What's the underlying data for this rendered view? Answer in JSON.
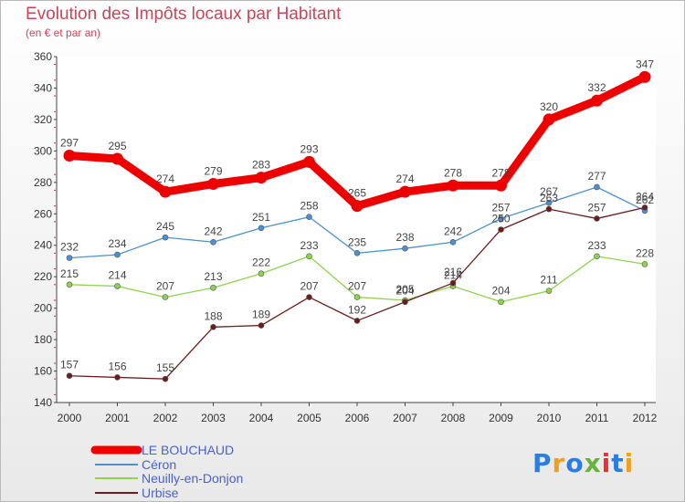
{
  "chart_data": {
    "type": "line",
    "title": "Evolution des Impôts locaux par Habitant",
    "subtitle": "(en € et par an)",
    "xlabel": "",
    "ylabel": "",
    "categories": [
      "2000",
      "2001",
      "2002",
      "2003",
      "2004",
      "2005",
      "2006",
      "2007",
      "2008",
      "2009",
      "2010",
      "2011",
      "2012"
    ],
    "ylim": [
      140,
      360
    ],
    "yticks": [
      140,
      160,
      180,
      200,
      220,
      240,
      260,
      280,
      300,
      320,
      340,
      360
    ],
    "grid": false,
    "legend": "bottom-left",
    "series": [
      {
        "name": "LE BOUCHAUD",
        "color": "#ee0000",
        "values": [
          297,
          295,
          274,
          279,
          283,
          293,
          265,
          274,
          278,
          278,
          320,
          332,
          347
        ]
      },
      {
        "name": "Céron",
        "color": "#4a91d1",
        "values": [
          232,
          234,
          245,
          242,
          251,
          258,
          235,
          238,
          242,
          257,
          267,
          277,
          262
        ]
      },
      {
        "name": "Neuilly-en-Donjon",
        "color": "#8fd34d",
        "values": [
          215,
          214,
          207,
          213,
          222,
          233,
          207,
          205,
          214,
          204,
          211,
          233,
          228
        ]
      },
      {
        "name": "Urbise",
        "color": "#6b1c1c",
        "values": [
          157,
          156,
          155,
          188,
          189,
          207,
          192,
          204,
          216,
          250,
          263,
          257,
          264
        ]
      }
    ]
  },
  "legend_items": [
    {
      "label": "LE BOUCHAUD",
      "color": "#ee0000"
    },
    {
      "label": "Céron",
      "color": "#4a91d1"
    },
    {
      "label": "Neuilly-en-Donjon",
      "color": "#8fd34d"
    },
    {
      "label": "Urbise",
      "color": "#6b1c1c"
    }
  ],
  "logo": {
    "text": "Proxiti",
    "colors": [
      "#2a7de1",
      "#f0a020",
      "#2a7de1",
      "#66b53a",
      "#e83030",
      "#2a7de1",
      "#f0a020"
    ]
  }
}
